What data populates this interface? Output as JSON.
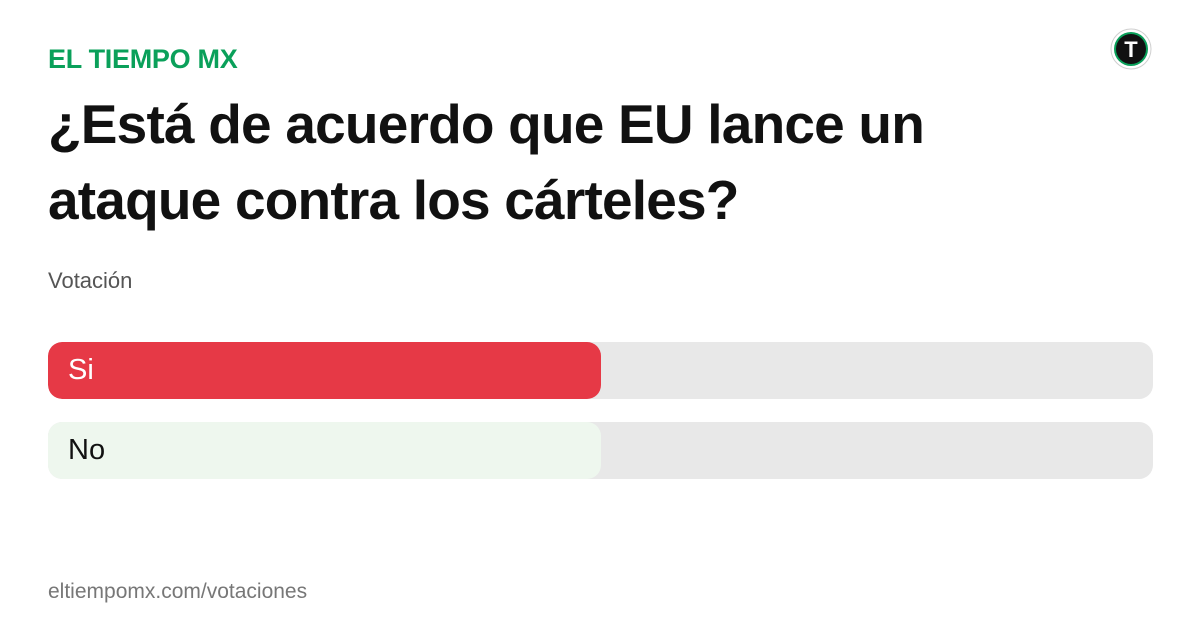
{
  "brand": {
    "name": "EL TIEMPO MX",
    "color": "#0aa05a",
    "logo_icon": "el-tiempo-logo-icon",
    "logo_letter": "T"
  },
  "poll": {
    "question": "¿Está de acuerdo que EU lance un ataque contra los cárteles?",
    "subtitle": "Votación",
    "options": [
      {
        "label": "Si",
        "share": 0.5,
        "fill_color": "#e63946",
        "label_color": "#ffffff"
      },
      {
        "label": "No",
        "share": 0.5,
        "fill_color": "#eef7ee",
        "label_color": "#111111"
      }
    ]
  },
  "footer": {
    "url": "eltiempomx.com/votaciones"
  }
}
